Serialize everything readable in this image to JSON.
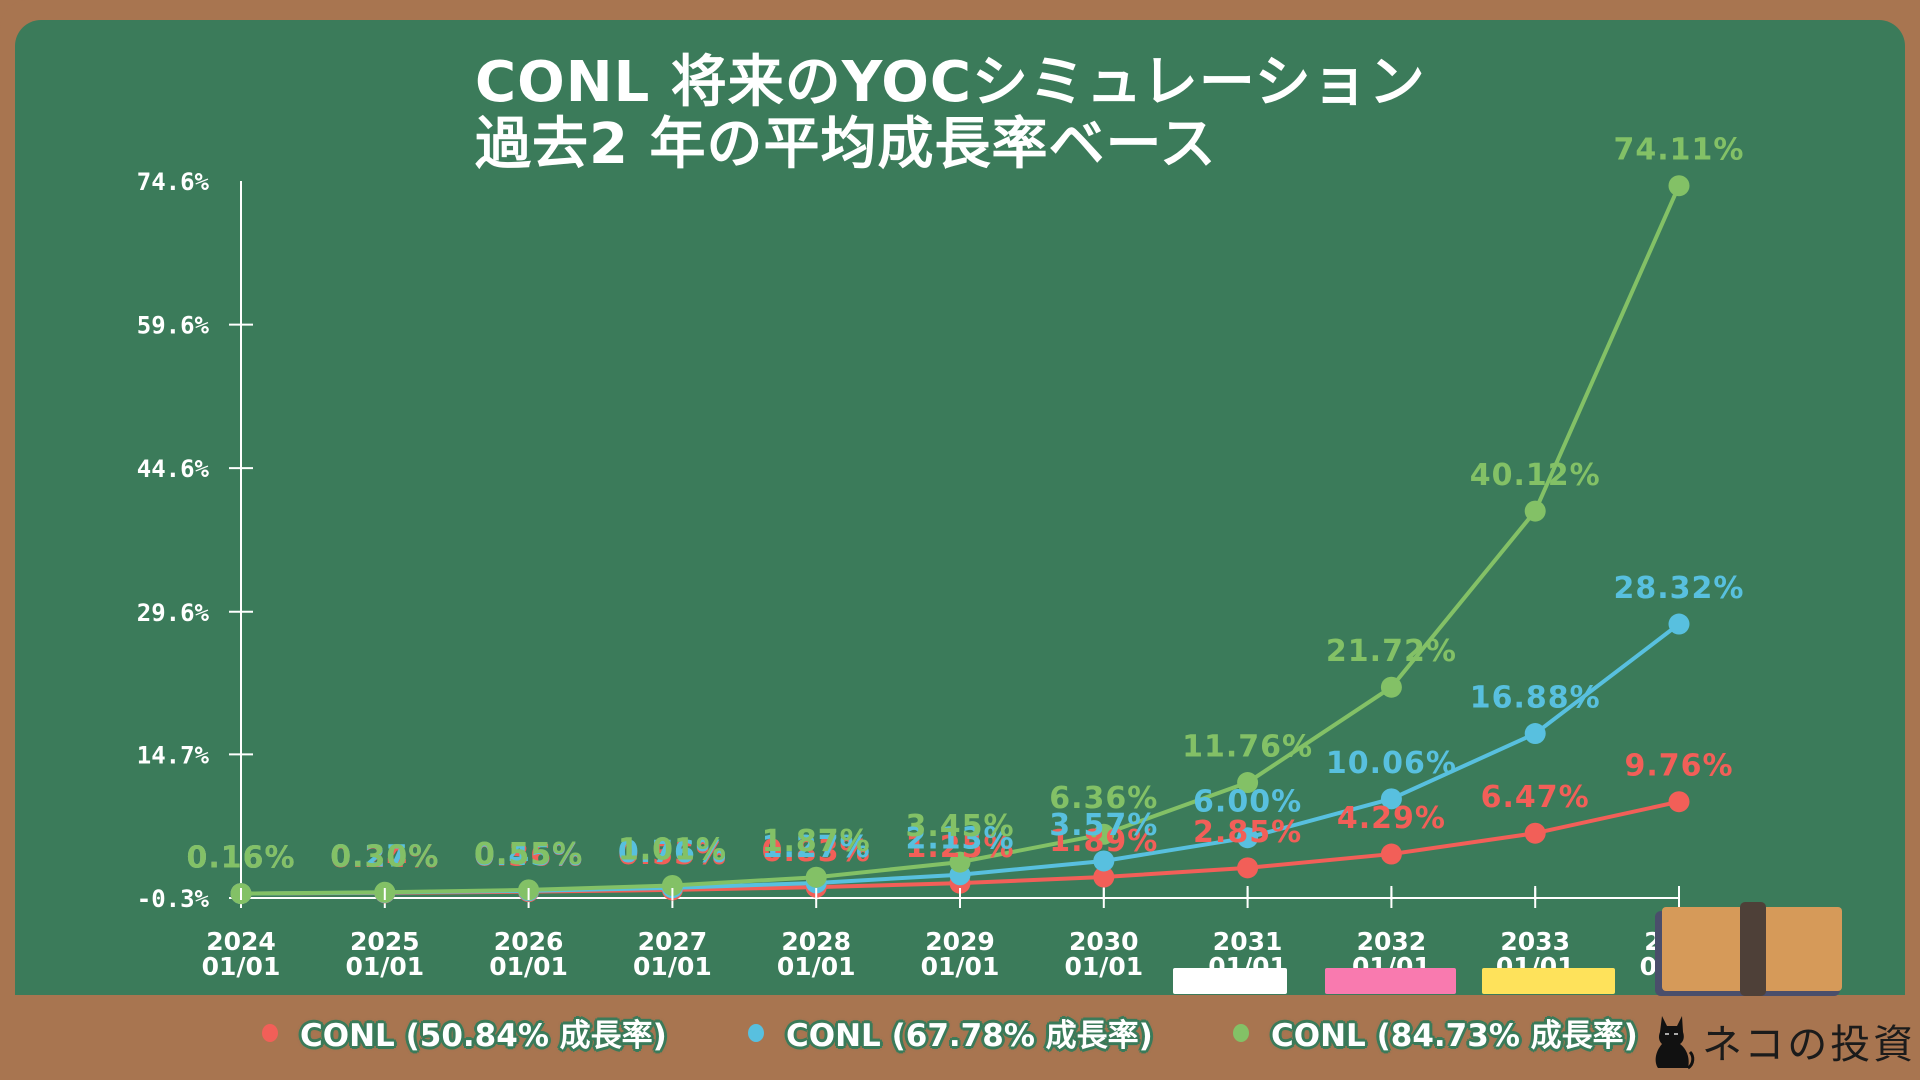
{
  "title": {
    "line1": "CONL 将来のYOCシミュレーション",
    "line2": "過去2 年の平均成長率ベース"
  },
  "colors": {
    "board": "#3b7b5a",
    "frame": "#a87550",
    "red": "#f25f58",
    "blue": "#58c0df",
    "green": "#83c166",
    "axis": "#ffffff"
  },
  "chart_data": {
    "type": "line",
    "title": "CONL 将来のYOCシミュレーション 過去2 年の平均成長率ベース",
    "xlabel": "",
    "ylabel": "",
    "ylim": [
      -0.3,
      74.6
    ],
    "yticks": [
      "74.6%",
      "59.6%",
      "44.6%",
      "29.6%",
      "14.7%",
      "-0.3%"
    ],
    "ytick_values": [
      74.6,
      59.6,
      44.6,
      29.6,
      14.7,
      -0.3
    ],
    "grid": false,
    "legend_position": "bottom",
    "x": [
      "2024\n01/01",
      "2025\n01/01",
      "2026\n01/01",
      "2027\n01/01",
      "2028\n01/01",
      "2029\n01/01",
      "2030\n01/01",
      "2031\n01/01",
      "2032\n01/01",
      "2033\n01/01",
      "2034\n01/01"
    ],
    "x_years": [
      "2024",
      "2025",
      "2026",
      "2027",
      "2028",
      "2029",
      "2030",
      "2031",
      "2032",
      "2033",
      "2034"
    ],
    "x_dates": [
      "01/01",
      "01/01",
      "01/01",
      "01/01",
      "01/01",
      "01/01",
      "01/01",
      "01/01",
      "01/01",
      "01/01",
      "01/01"
    ],
    "series": [
      {
        "name": "CONL (50.84% 成長率)",
        "color": "#f25f58",
        "values": [
          0.16,
          0.24,
          0.36,
          0.55,
          0.83,
          1.25,
          1.89,
          2.85,
          4.29,
          6.47,
          9.76
        ],
        "labels": [
          "0.16%",
          "0.24%",
          "0.36%",
          "0.55%",
          "0.83%",
          "1.25%",
          "1.89%",
          "2.85%",
          "4.29%",
          "6.47%",
          "9.76%"
        ]
      },
      {
        "name": "CONL (67.78% 成長率)",
        "color": "#58c0df",
        "values": [
          0.16,
          0.27,
          0.45,
          0.76,
          1.27,
          2.13,
          3.57,
          6.0,
          10.06,
          16.88,
          28.32
        ],
        "labels": [
          "0.16%",
          "0.27%",
          "0.45%",
          "0.76%",
          "1.27%",
          "2.13%",
          "3.57%",
          "6.00%",
          "10.06%",
          "16.88%",
          "28.32%"
        ]
      },
      {
        "name": "CONL (84.73% 成長率)",
        "color": "#83c166",
        "values": [
          0.16,
          0.3,
          0.55,
          1.01,
          1.87,
          3.45,
          6.36,
          11.76,
          21.72,
          40.12,
          74.11
        ],
        "labels": [
          "0.16%",
          "0.30%",
          "0.55%",
          "1.01%",
          "1.87%",
          "3.45%",
          "6.36%",
          "11.76%",
          "21.72%",
          "40.12%",
          "74.11%"
        ]
      }
    ]
  },
  "legend": {
    "items": [
      {
        "label": "CONL (50.84% 成長率)",
        "color": "#f25f58"
      },
      {
        "label": "CONL (67.78% 成長率)",
        "color": "#58c0df"
      },
      {
        "label": "CONL (84.73% 成長率)",
        "color": "#83c166"
      }
    ]
  },
  "decorations": {
    "chalk_colors": [
      "#ffffff",
      "#f97aaf",
      "#fee25b"
    ],
    "book_color": "#d69a59",
    "book_band_color": "#4e4038"
  },
  "brand": {
    "text": "ネコの投資",
    "icon": "black-cat-icon"
  }
}
